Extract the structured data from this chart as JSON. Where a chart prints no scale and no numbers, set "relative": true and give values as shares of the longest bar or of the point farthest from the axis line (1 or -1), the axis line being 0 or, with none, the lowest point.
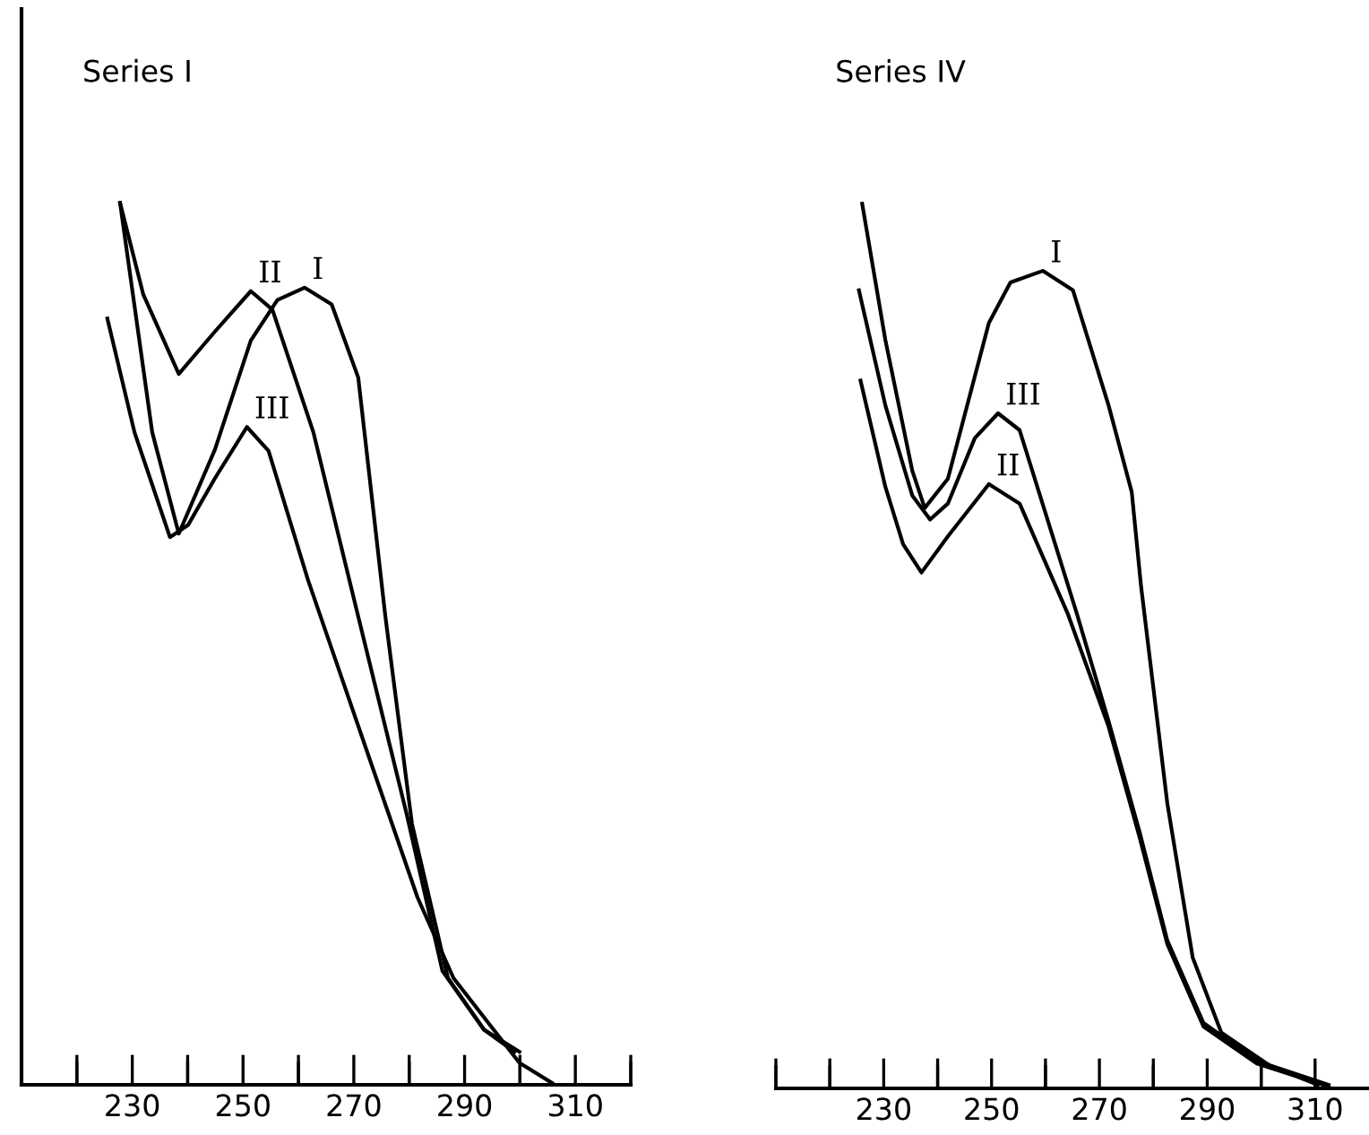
{
  "chart_data": [
    {
      "type": "line",
      "title": "Series I",
      "relative": true,
      "xlim": [
        210,
        320
      ],
      "xticks": [
        {
          "value": 220,
          "label": null
        },
        230,
        {
          "value": 240,
          "label": null
        },
        250,
        {
          "value": 260,
          "label": null
        },
        270,
        {
          "value": 280,
          "label": null
        },
        290,
        {
          "value": 300,
          "label": null
        },
        310,
        {
          "value": 320,
          "label": null
        }
      ],
      "tick_labels": "x",
      "grid": false,
      "legend": false,
      "series": [
        {
          "name": "I",
          "color": "#000000",
          "x": [
            227.8,
            233.6,
            238.4,
            244.9,
            251.4,
            256.2,
            261.1,
            266.0,
            270.8,
            275.7,
            280.5,
            287.0,
            293.5,
            299.9
          ],
          "values": [
            1.0,
            0.74,
            0.625,
            0.72,
            0.844,
            0.89,
            0.904,
            0.885,
            0.802,
            0.531,
            0.296,
            0.121,
            0.0625,
            0.0375
          ]
        },
        {
          "name": "II",
          "color": "#000000",
          "x": [
            227.8,
            232.0,
            238.4,
            244.9,
            251.4,
            255.3,
            262.7,
            270.8,
            279.5,
            286.0,
            293.5,
            299.0
          ],
          "values": [
            1.0,
            0.896,
            0.806,
            0.854,
            0.9,
            0.879,
            0.74,
            0.531,
            0.308,
            0.129,
            0.0625,
            0.0375
          ]
        },
        {
          "name": "III",
          "color": "#000000",
          "x": [
            225.5,
            230.4,
            236.8,
            240.1,
            244.9,
            250.7,
            254.6,
            261.7,
            273.1,
            281.5,
            288.0,
            299.9,
            305.8
          ],
          "values": [
            0.869,
            0.74,
            0.621,
            0.635,
            0.6875,
            0.746,
            0.719,
            0.573,
            0.365,
            0.2125,
            0.121,
            0.025,
            0.002
          ]
        }
      ]
    },
    {
      "type": "line",
      "title": "Series IV",
      "relative": true,
      "xlim": [
        210,
        320
      ],
      "xticks": [
        {
          "value": 210,
          "label": null
        },
        {
          "value": 220,
          "label": null
        },
        230,
        {
          "value": 240,
          "label": null
        },
        250,
        {
          "value": 260,
          "label": null
        },
        270,
        {
          "value": 280,
          "label": null
        },
        290,
        {
          "value": 300,
          "label": null
        },
        310
      ],
      "tick_labels": "x",
      "grid": false,
      "legend": false,
      "series": [
        {
          "name": "I",
          "color": "#000000",
          "x": [
            226.0,
            230.3,
            235.3,
            237.6,
            241.9,
            249.5,
            253.5,
            259.5,
            265.1,
            271.7,
            276.0,
            277.7,
            282.6,
            287.3,
            292.6,
            301.5,
            310.5
          ],
          "values": [
            1.0,
            0.846,
            0.698,
            0.656,
            0.689,
            0.865,
            0.911,
            0.924,
            0.902,
            0.772,
            0.674,
            0.569,
            0.322,
            0.148,
            0.063,
            0.026,
            0.004
          ]
        },
        {
          "name": "II",
          "color": "#000000",
          "x": [
            225.7,
            230.3,
            233.6,
            237.0,
            241.9,
            249.5,
            255.2,
            264.1,
            271.7,
            277.4,
            282.6,
            289.3,
            299.2,
            312.5
          ],
          "values": [
            0.8,
            0.68,
            0.615,
            0.583,
            0.624,
            0.683,
            0.661,
            0.537,
            0.409,
            0.285,
            0.163,
            0.07,
            0.028,
            0.002
          ]
        },
        {
          "name": "III",
          "color": "#000000",
          "x": [
            225.4,
            230.3,
            235.3,
            238.6,
            241.9,
            246.9,
            251.2,
            255.2,
            265.8,
            271.7,
            277.4,
            282.6,
            289.3,
            299.2,
            312.5
          ],
          "values": [
            0.902,
            0.772,
            0.67,
            0.643,
            0.661,
            0.735,
            0.763,
            0.744,
            0.537,
            0.415,
            0.291,
            0.167,
            0.074,
            0.031,
            0.004
          ]
        }
      ]
    }
  ]
}
